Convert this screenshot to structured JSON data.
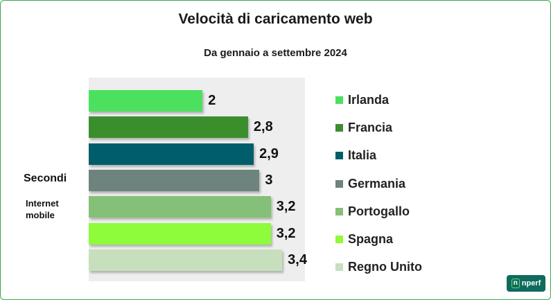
{
  "chart_data": {
    "type": "bar",
    "orientation": "horizontal",
    "title": "Velocità di caricamento web",
    "subtitle": "Da gennaio a settembre 2024",
    "ylabel": "Secondi",
    "ylabel_sub": "Internet mobile",
    "xlim": [
      0,
      3.8
    ],
    "legend_position": "right",
    "categories": [
      "Irlanda",
      "Francia",
      "Italia",
      "Germania",
      "Portogallo",
      "Spagna",
      "Regno Unito"
    ],
    "values": [
      2,
      2.8,
      2.9,
      3,
      3.2,
      3.2,
      3.4
    ],
    "value_labels": [
      "2",
      "2,8",
      "2,9",
      "3",
      "3,2",
      "3,2",
      "3,4"
    ],
    "colors": [
      "#4be15f",
      "#3a8f2c",
      "#005e6a",
      "#6e837d",
      "#84c077",
      "#8efb3b",
      "#c7dfbd"
    ]
  },
  "logo": {
    "text": "nperf"
  }
}
